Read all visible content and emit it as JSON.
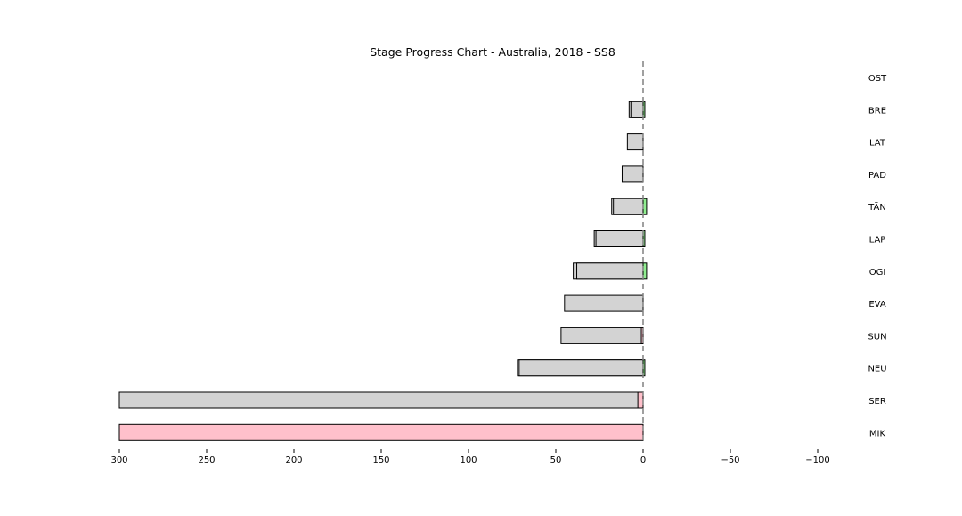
{
  "chart_data": {
    "type": "bar",
    "orientation": "horizontal",
    "title": "Stage Progress Chart - Australia, 2018 - SS8",
    "xlabel": "",
    "ylabel": "",
    "xlim": [
      300,
      -120
    ],
    "x_ticks": [
      300,
      250,
      200,
      150,
      100,
      50,
      0,
      -50,
      -100
    ],
    "x_tick_labels": [
      "300",
      "250",
      "200",
      "150",
      "100",
      "50",
      "0",
      "−50",
      "−100"
    ],
    "reference_line": 0,
    "grid": false,
    "legend": "none",
    "categories": [
      "OST",
      "BRE",
      "LAT",
      "PAD",
      "TÄN",
      "LAP",
      "OGI",
      "EVA",
      "SUN",
      "NEU",
      "SER",
      "MIK"
    ],
    "series": [
      {
        "values": [
          0,
          8,
          9,
          12,
          18,
          28,
          40,
          45,
          47,
          72,
          300,
          0
        ],
        "color": "#d3d3d3"
      },
      {
        "values": [
          0,
          7,
          0,
          0,
          17,
          27,
          38,
          0,
          0,
          71,
          0,
          0
        ],
        "color": "#d3d3d3"
      },
      {
        "values": [
          0,
          -1,
          0,
          0,
          -2,
          -1,
          -2,
          0,
          1,
          -1,
          3,
          300
        ],
        "positive_color": "#ffc0cb",
        "negative_color": "#90ee90"
      }
    ]
  }
}
